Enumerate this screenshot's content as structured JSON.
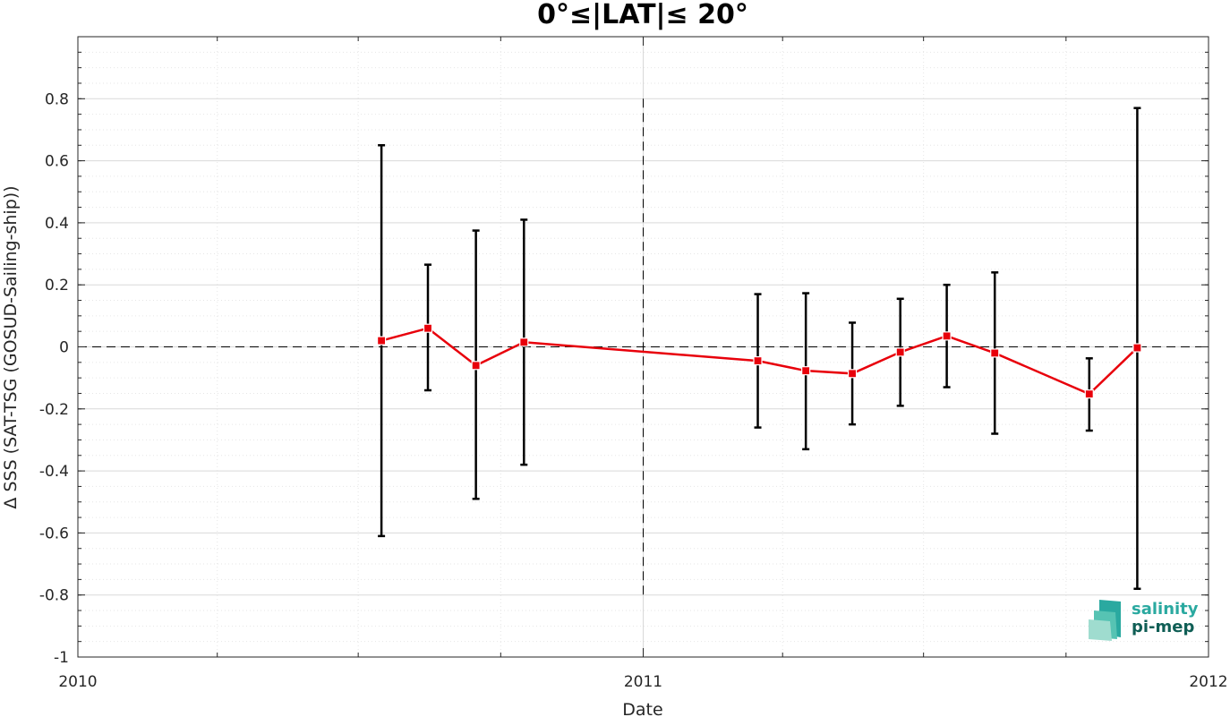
{
  "chart_data": {
    "type": "line",
    "title": "0°≤|LAT|≤ 20°",
    "xlabel": "Date",
    "ylabel": "Δ SSS (SAT-TSG (GOSUD-Sailing-ship))",
    "xlim": [
      "2010-01-01",
      "2012-01-01"
    ],
    "ylim": [
      -1,
      1
    ],
    "x_ticks": [
      {
        "date": "2010-01-01",
        "label": "2010"
      },
      {
        "date": "2011-01-01",
        "label": "2011"
      },
      {
        "date": "2012-01-01",
        "label": "2012"
      }
    ],
    "x_minor_ticks": [
      "2010-04-01",
      "2010-07-01",
      "2010-10-01",
      "2011-04-01",
      "2011-07-01",
      "2011-10-01"
    ],
    "y_ticks": [
      -1,
      -0.8,
      -0.6,
      -0.4,
      -0.2,
      0,
      0.2,
      0.4,
      0.6,
      0.8
    ],
    "y_tick_labels": [
      "-1",
      "-0.8",
      "-0.6",
      "-0.4",
      "-0.2",
      "0",
      "0.2",
      "0.4",
      "0.6",
      "0.8"
    ],
    "grid": true,
    "reference_lines": {
      "y": 0,
      "x": "2011-01-01"
    },
    "colors": {
      "line": "#e8000b",
      "errorbar": "#000000",
      "grid": "#dcdcdc"
    },
    "series": [
      {
        "x": [
          "2010-07-16",
          "2010-08-15",
          "2010-09-15",
          "2010-10-16",
          "2011-03-16",
          "2011-04-16",
          "2011-05-16",
          "2011-06-16",
          "2011-07-16",
          "2011-08-16",
          "2011-10-16",
          "2011-11-16"
        ],
        "y": [
          0.02,
          0.06,
          -0.06,
          0.015,
          -0.045,
          -0.077,
          -0.086,
          -0.017,
          0.035,
          -0.02,
          -0.152,
          -0.003
        ],
        "lower": [
          -0.61,
          -0.14,
          -0.49,
          -0.38,
          -0.26,
          -0.33,
          -0.25,
          -0.19,
          -0.13,
          -0.28,
          -0.27,
          -0.78
        ],
        "upper": [
          0.65,
          0.265,
          0.375,
          0.41,
          0.17,
          0.173,
          0.078,
          0.155,
          0.2,
          0.24,
          -0.037,
          0.77
        ]
      }
    ]
  },
  "logo": {
    "line1": "salinity",
    "line2": "pi-mep"
  }
}
